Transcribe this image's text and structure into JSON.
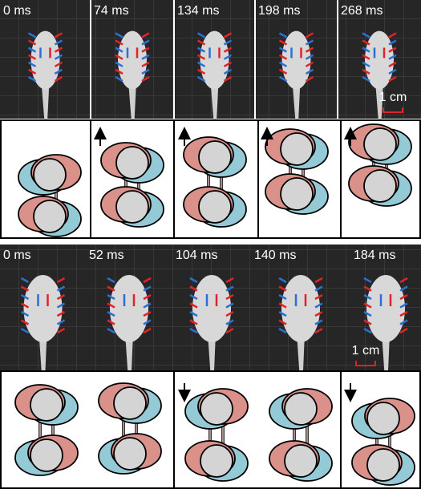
{
  "top": {
    "frames": [
      {
        "time": "0 ms"
      },
      {
        "time": "74 ms"
      },
      {
        "time": "134 ms"
      },
      {
        "time": "198 ms"
      },
      {
        "time": "268 ms"
      }
    ],
    "scale": "1 cm"
  },
  "bottom": {
    "frames": [
      {
        "time": "0 ms"
      },
      {
        "time": "52 ms"
      },
      {
        "time": "104 ms"
      },
      {
        "time": "140 ms"
      },
      {
        "time": "184 ms"
      }
    ],
    "scale": "1 cm"
  }
}
